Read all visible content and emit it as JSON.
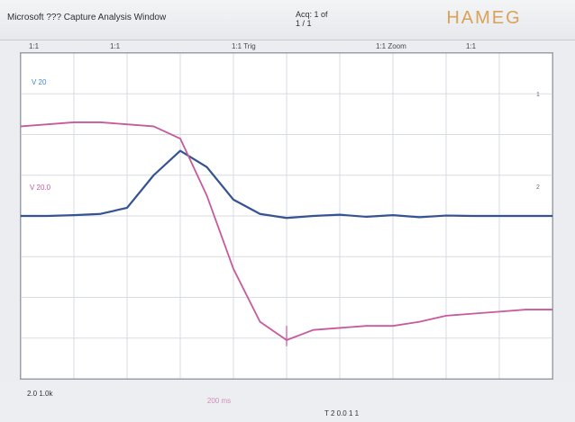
{
  "window": {
    "title": "Microsoft ??? Capture Analysis Window",
    "acquisition": "Acq: 1 of\n1 / 1"
  },
  "brand": {
    "text": "HAMEG",
    "color": "#d8a25a"
  },
  "infobar": {
    "items": [
      "1:1",
      "1:1",
      "1:1 Trig",
      "1:1 Zoom",
      "1:1"
    ]
  },
  "plot": {
    "title": "",
    "channel_labels": [
      "V\n20",
      "V\n20.0"
    ],
    "grid": {
      "x_divisions": 10,
      "y_divisions": 8
    },
    "traces": [
      {
        "name": "ch1",
        "color": "#355392",
        "label": "1"
      },
      {
        "name": "ch2",
        "color": "#c75a9d",
        "label": "2"
      }
    ]
  },
  "bottom": {
    "left_text": "2.0  1.0k",
    "center_text": "200 ms",
    "right_text": "T  2 0.0  1  1"
  },
  "chart_data": {
    "type": "line",
    "title": "",
    "xlabel": "",
    "ylabel": "",
    "xlim": [
      0,
      10
    ],
    "ylim": [
      -4,
      4
    ],
    "series": [
      {
        "name": "",
        "values": [
          0.0,
          0.0,
          0.02,
          0.05,
          0.2,
          1.0,
          1.6,
          1.2,
          0.4,
          0.05,
          -0.05,
          0.0,
          0.03,
          -0.02,
          0.02,
          -0.03,
          0.01,
          0.0,
          0.0,
          0.0,
          0.0
        ],
        "x": [
          0,
          0.5,
          1.0,
          1.5,
          2.0,
          2.5,
          3.0,
          3.5,
          4.0,
          4.5,
          5.0,
          5.5,
          6.0,
          6.5,
          7.0,
          7.5,
          8.0,
          8.5,
          9.0,
          9.5,
          10.0
        ],
        "color": "#355392"
      },
      {
        "name": "",
        "values": [
          2.2,
          2.25,
          2.3,
          2.3,
          2.25,
          2.2,
          1.9,
          0.5,
          -1.3,
          -2.6,
          -3.05,
          -2.8,
          -2.75,
          -2.7,
          -2.7,
          -2.6,
          -2.45,
          -2.4,
          -2.35,
          -2.3,
          -2.3
        ],
        "x": [
          0,
          0.5,
          1.0,
          1.5,
          2.0,
          2.5,
          3.0,
          3.5,
          4.0,
          4.5,
          5.0,
          5.5,
          6.0,
          6.5,
          7.0,
          7.5,
          8.0,
          8.5,
          9.0,
          9.5,
          10.0
        ],
        "color": "#c75a9d"
      }
    ]
  }
}
